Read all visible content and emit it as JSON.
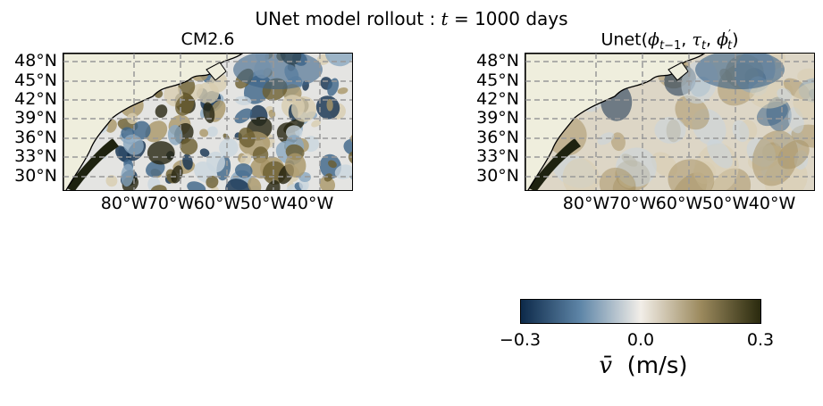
{
  "figure": {
    "suptitle": "UNet model rollout : t = 1000 days"
  },
  "chart_data": [
    {
      "type": "heatmap",
      "title": "CM2.6",
      "xlabel": "",
      "ylabel": "",
      "x_ticks": [
        "80°W",
        "70°W",
        "60°W",
        "50°W",
        "40°W"
      ],
      "y_ticks": [
        "48°N",
        "45°N",
        "42°N",
        "39°N",
        "36°N",
        "33°N",
        "30°N"
      ],
      "xlim": [
        -82,
        -35
      ],
      "ylim": [
        27.5,
        49.5
      ],
      "grid": true,
      "field": "meridional velocity, high-variability eddy field"
    },
    {
      "type": "heatmap",
      "title": "Unet(φt−1, τt, φ′t)",
      "xlabel": "",
      "ylabel": "",
      "x_ticks": [
        "80°W",
        "70°W",
        "60°W",
        "50°W",
        "40°W"
      ],
      "y_ticks": [
        "48°N",
        "45°N",
        "42°N",
        "39°N",
        "36°N",
        "33°N",
        "30°N"
      ],
      "xlim": [
        -82,
        -35
      ],
      "ylim": [
        27.5,
        49.5
      ],
      "grid": true,
      "field": "meridional velocity, smoothed prediction"
    }
  ],
  "colorbar": {
    "ticks": [
      "−0.3",
      "0.0",
      "0.3"
    ],
    "range": [
      -0.3,
      0.3
    ],
    "label_symbol": "v̄",
    "label_units": "(m/s)",
    "colors": [
      "#0d2a4a",
      "#5f86a8",
      "#f2eee8",
      "#9c8a5e",
      "#2a2a0e"
    ]
  },
  "land_color": "#efeedd"
}
